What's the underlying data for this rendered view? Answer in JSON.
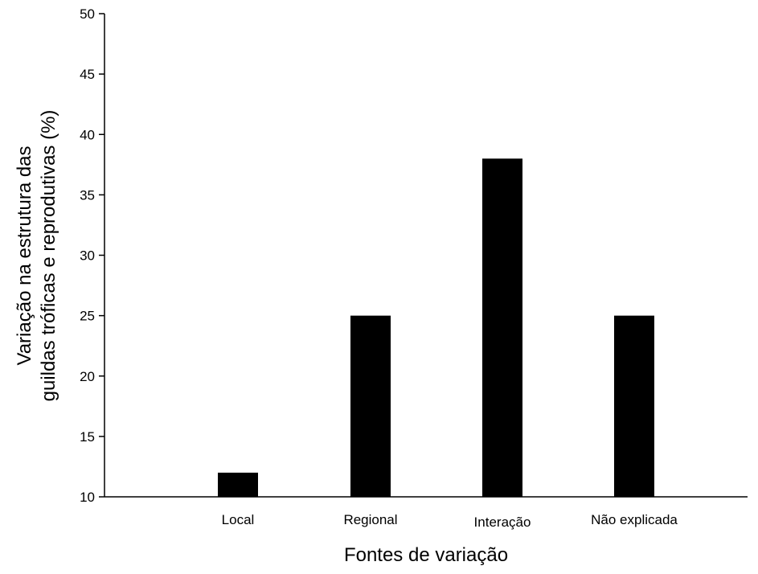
{
  "chart_data": {
    "type": "bar",
    "categories": [
      "Local",
      "Regional",
      "Interação",
      "Não explicada"
    ],
    "values": [
      12,
      25,
      38,
      25
    ],
    "xlabel": "Fontes de variação",
    "ylabel_lines": [
      "Variação na estrutura das",
      "guildas tróficas e reprodutivas (%)"
    ],
    "ylim": [
      10,
      50
    ],
    "yticks": [
      10,
      15,
      20,
      25,
      30,
      35,
      40,
      45,
      50
    ],
    "grid": false,
    "legend": "none",
    "bar_color": "#000000"
  }
}
